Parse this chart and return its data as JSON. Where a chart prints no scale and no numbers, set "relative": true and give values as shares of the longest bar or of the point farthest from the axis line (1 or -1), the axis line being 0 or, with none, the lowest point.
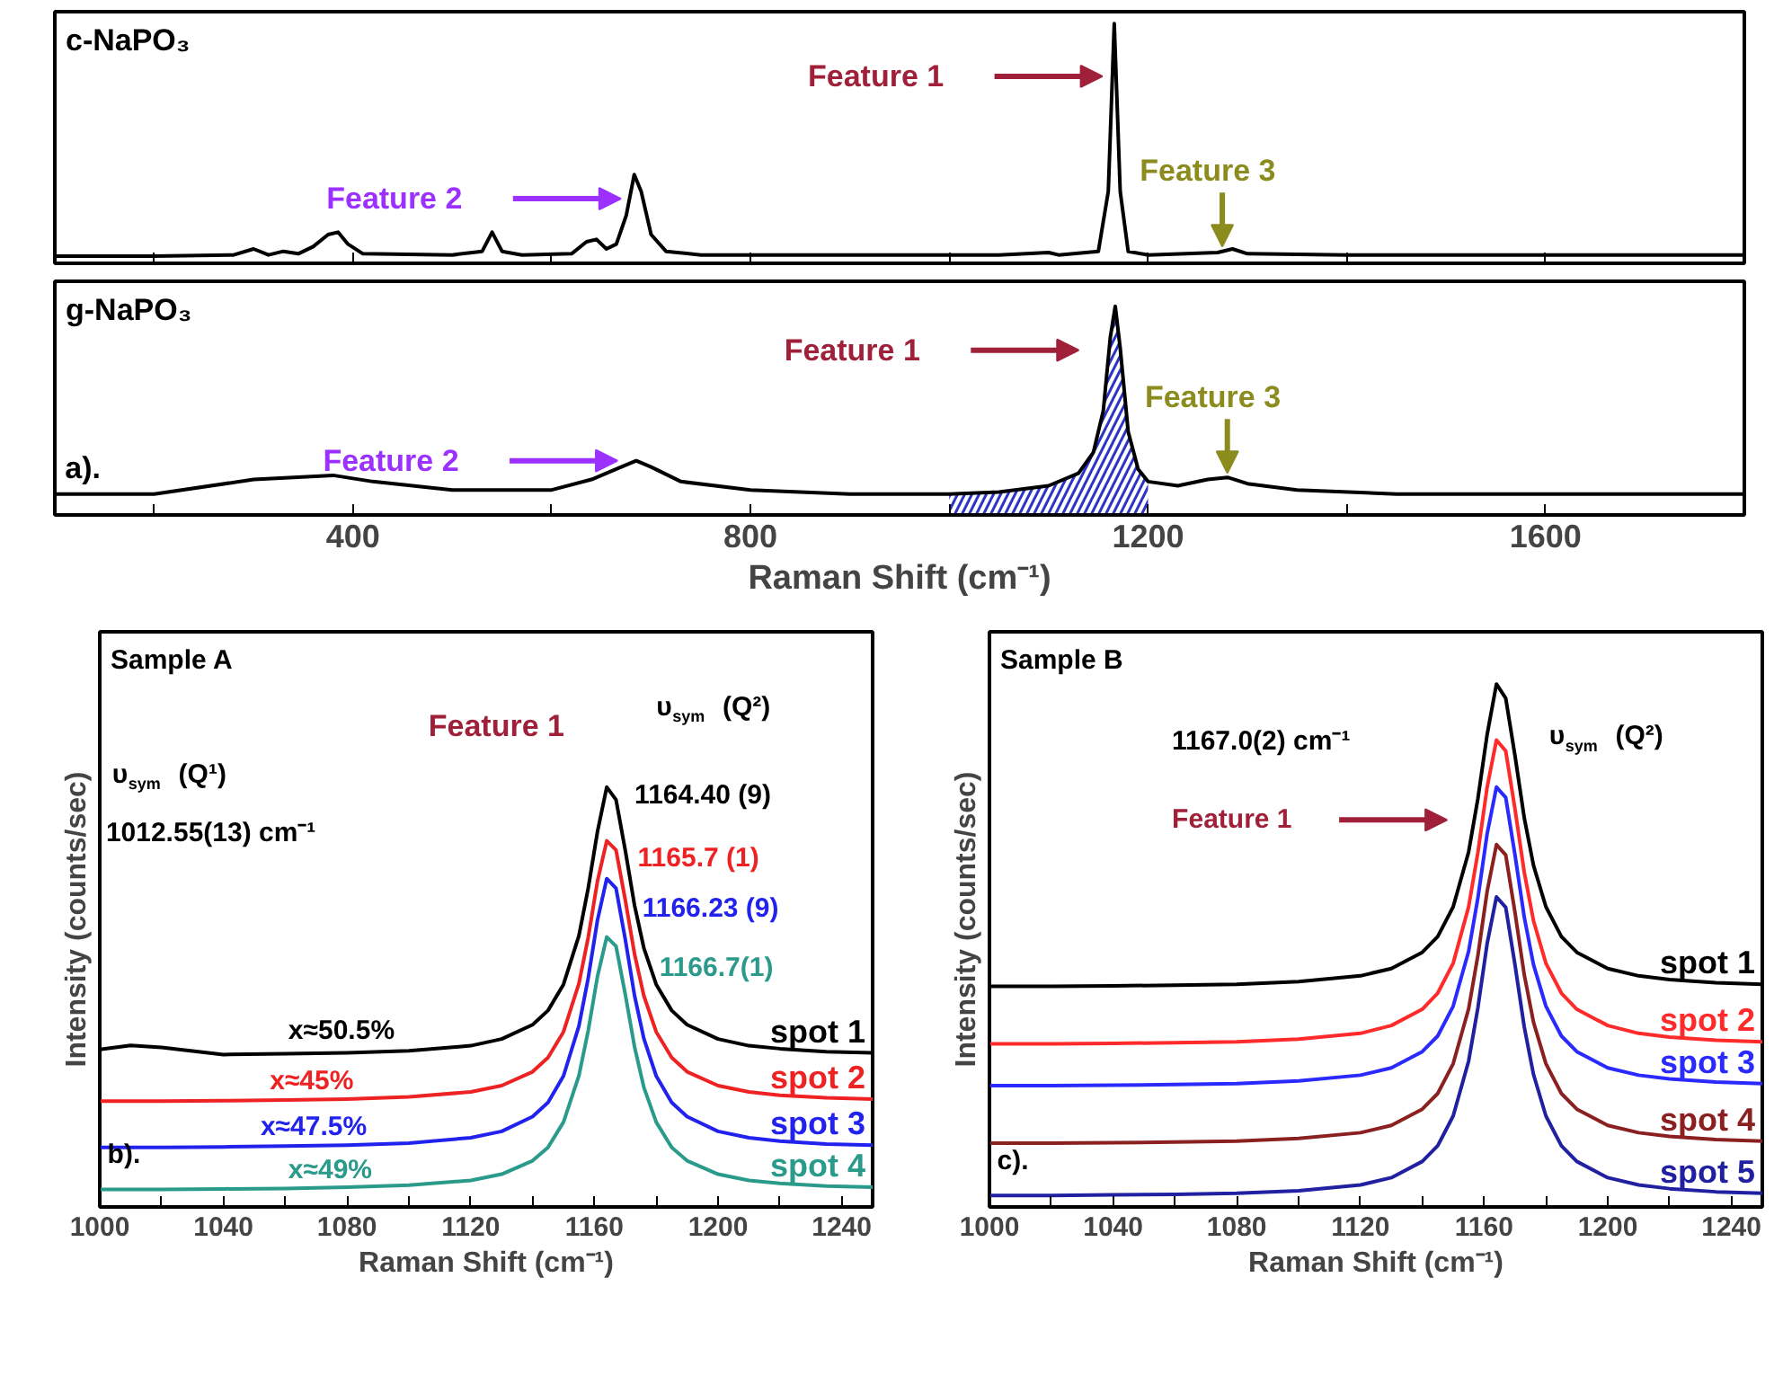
{
  "chart_data": [
    {
      "type": "line",
      "title": "c-NaPO₃",
      "relative": true,
      "tick_labels": false,
      "xlim": [
        100,
        1800
      ],
      "xticks": [
        {
          "value": 200,
          "label": null
        },
        400,
        {
          "value": 600,
          "label": null
        },
        800,
        {
          "value": 1000,
          "label": null
        },
        1200,
        {
          "value": 1400,
          "label": null
        },
        1600,
        {
          "value": 1800,
          "label": null
        }
      ],
      "series": [
        {
          "color": "#000000",
          "x": [
            100,
            200,
            280,
            300,
            315,
            330,
            345,
            360,
            375,
            385,
            395,
            410,
            500,
            530,
            540,
            550,
            570,
            620,
            635,
            645,
            655,
            665,
            675,
            683,
            690,
            700,
            715,
            750,
            900,
            1050,
            1100,
            1110,
            1150,
            1160,
            1166,
            1172,
            1180,
            1200,
            1270,
            1285,
            1300,
            1400,
            1600,
            1800
          ],
          "values": [
            0.03,
            0.03,
            0.035,
            0.06,
            0.035,
            0.05,
            0.04,
            0.07,
            0.12,
            0.13,
            0.08,
            0.04,
            0.035,
            0.05,
            0.13,
            0.05,
            0.035,
            0.04,
            0.09,
            0.1,
            0.06,
            0.08,
            0.2,
            0.37,
            0.3,
            0.12,
            0.05,
            0.035,
            0.035,
            0.035,
            0.045,
            0.035,
            0.05,
            0.3,
            1.0,
            0.3,
            0.05,
            0.035,
            0.045,
            0.06,
            0.04,
            0.035,
            0.035,
            0.035
          ]
        }
      ],
      "annotations": [
        "Feature 1",
        "Feature 2",
        "Feature 3"
      ]
    },
    {
      "type": "line",
      "title": "g-NaPO₃",
      "xlabel": "Raman Shift (cm⁻¹)",
      "relative": true,
      "tick_labels": "x",
      "xlim": [
        100,
        1800
      ],
      "xticks": [
        {
          "value": 200,
          "label": null
        },
        400,
        {
          "value": 600,
          "label": null
        },
        800,
        {
          "value": 1000,
          "label": null
        },
        1200,
        {
          "value": 1400,
          "label": null
        },
        1600,
        {
          "value": 1800,
          "label": null
        }
      ],
      "series": [
        {
          "color": "#000000",
          "x": [
            100,
            200,
            300,
            380,
            420,
            500,
            600,
            640,
            665,
            685,
            700,
            730,
            800,
            900,
            1000,
            1050,
            1100,
            1130,
            1145,
            1155,
            1162,
            1167,
            1172,
            1180,
            1190,
            1200,
            1230,
            1260,
            1280,
            1300,
            1350,
            1450,
            1600,
            1800
          ],
          "values": [
            0.1,
            0.1,
            0.17,
            0.19,
            0.16,
            0.12,
            0.12,
            0.17,
            0.22,
            0.26,
            0.23,
            0.16,
            0.12,
            0.1,
            0.1,
            0.11,
            0.14,
            0.2,
            0.3,
            0.5,
            0.85,
            1.0,
            0.8,
            0.4,
            0.22,
            0.16,
            0.14,
            0.17,
            0.18,
            0.15,
            0.12,
            0.1,
            0.1,
            0.1
          ]
        },
        {
          "type": "area",
          "color": "#2a35c8",
          "x": [
            1000,
            1050,
            1100,
            1130,
            1145,
            1155,
            1162,
            1167,
            1172,
            1180,
            1190,
            1200
          ],
          "values": [
            0.1,
            0.11,
            0.14,
            0.2,
            0.3,
            0.5,
            0.85,
            1.0,
            0.8,
            0.4,
            0.22,
            0.16
          ]
        }
      ],
      "annotations": [
        "Feature 1",
        "Feature 2",
        "Feature 3",
        "a)."
      ]
    },
    {
      "type": "line",
      "title": "Sample A",
      "xlabel": "Raman Shift (cm⁻¹)",
      "ylabel": "Intensity (counts/sec)",
      "relative": true,
      "tick_labels": "x",
      "xlim": [
        1000,
        1250
      ],
      "xticks": [
        1000,
        {
          "value": 1020,
          "label": null
        },
        1040,
        {
          "value": 1060,
          "label": null
        },
        1080,
        {
          "value": 1100,
          "label": null
        },
        1120,
        {
          "value": 1140,
          "label": null
        },
        1160,
        {
          "value": 1180,
          "label": null
        },
        1200,
        {
          "value": 1220,
          "label": null
        },
        1240
      ],
      "x": [
        1000,
        1010,
        1020,
        1040,
        1060,
        1080,
        1100,
        1120,
        1130,
        1140,
        1145,
        1150,
        1155,
        1158,
        1161,
        1164,
        1167,
        1170,
        1173,
        1176,
        1180,
        1185,
        1190,
        1200,
        1210,
        1220,
        1235,
        1250
      ],
      "series": [
        {
          "name": "spot 1",
          "color": "#000000",
          "values": [
            0.375,
            0.385,
            0.38,
            0.363,
            0.365,
            0.367,
            0.372,
            0.384,
            0.4,
            0.434,
            0.468,
            0.53,
            0.646,
            0.759,
            0.894,
            1.0,
            0.97,
            0.849,
            0.718,
            0.617,
            0.53,
            0.468,
            0.434,
            0.4,
            0.384,
            0.377,
            0.37,
            0.367
          ]
        },
        {
          "name": "spot 2",
          "color": "#ee2222",
          "values": [
            0.252,
            0.252,
            0.252,
            0.253,
            0.255,
            0.257,
            0.262,
            0.274,
            0.289,
            0.322,
            0.356,
            0.417,
            0.532,
            0.642,
            0.776,
            0.872,
            0.85,
            0.731,
            0.602,
            0.503,
            0.417,
            0.356,
            0.322,
            0.289,
            0.274,
            0.266,
            0.26,
            0.257
          ]
        },
        {
          "name": "spot 3",
          "color": "#2222ee",
          "values": [
            0.142,
            0.142,
            0.142,
            0.143,
            0.145,
            0.147,
            0.152,
            0.165,
            0.18,
            0.215,
            0.249,
            0.312,
            0.431,
            0.545,
            0.683,
            0.782,
            0.759,
            0.637,
            0.503,
            0.401,
            0.312,
            0.249,
            0.215,
            0.18,
            0.165,
            0.157,
            0.15,
            0.147
          ]
        },
        {
          "name": "spot 4",
          "color": "#2a9a8a",
          "values": [
            0.042,
            0.042,
            0.042,
            0.043,
            0.044,
            0.047,
            0.052,
            0.063,
            0.078,
            0.11,
            0.142,
            0.202,
            0.313,
            0.42,
            0.549,
            0.643,
            0.621,
            0.506,
            0.381,
            0.285,
            0.202,
            0.142,
            0.11,
            0.078,
            0.063,
            0.056,
            0.05,
            0.047
          ]
        }
      ],
      "annotations": [
        "υ$_{sym}$ (Q¹)",
        "1012.55(13) cm⁻¹",
        "Feature 1",
        "υ$_{sym}$ (Q²)",
        "1164.40 (9)",
        "1165.7 (1)",
        "1166.23 (9)",
        "1166.7(1)",
        "x≈50.5%",
        "x≈45%",
        "x≈47.5%",
        "x≈49%",
        "b)."
      ]
    },
    {
      "type": "line",
      "title": "Sample B",
      "xlabel": "Raman Shift (cm⁻¹)",
      "ylabel": "Intensity (counts/sec)",
      "relative": true,
      "tick_labels": "x",
      "xlim": [
        1000,
        1250
      ],
      "xticks": [
        1000,
        {
          "value": 1020,
          "label": null
        },
        1040,
        {
          "value": 1060,
          "label": null
        },
        1080,
        {
          "value": 1100,
          "label": null
        },
        1120,
        {
          "value": 1140,
          "label": null
        },
        1160,
        {
          "value": 1180,
          "label": null
        },
        1200,
        {
          "value": 1220,
          "label": null
        },
        1240
      ],
      "x": [
        1000,
        1010,
        1020,
        1040,
        1060,
        1080,
        1100,
        1120,
        1130,
        1140,
        1145,
        1150,
        1155,
        1158,
        1161,
        1164,
        1167,
        1170,
        1173,
        1176,
        1180,
        1185,
        1190,
        1200,
        1210,
        1220,
        1235,
        1250
      ],
      "series": [
        {
          "name": "spot 1",
          "color": "#000000",
          "values": [
            0.422,
            0.422,
            0.422,
            0.423,
            0.424,
            0.426,
            0.431,
            0.442,
            0.456,
            0.487,
            0.517,
            0.574,
            0.679,
            0.781,
            0.904,
            1.0,
            0.973,
            0.863,
            0.744,
            0.653,
            0.574,
            0.517,
            0.487,
            0.456,
            0.442,
            0.435,
            0.429,
            0.426
          ]
        },
        {
          "name": "spot 2",
          "color": "#ff2a2a",
          "values": [
            0.312,
            0.312,
            0.312,
            0.313,
            0.314,
            0.316,
            0.321,
            0.332,
            0.347,
            0.378,
            0.409,
            0.466,
            0.574,
            0.678,
            0.803,
            0.893,
            0.872,
            0.761,
            0.64,
            0.547,
            0.466,
            0.409,
            0.378,
            0.347,
            0.332,
            0.325,
            0.319,
            0.316
          ]
        },
        {
          "name": "spot 3",
          "color": "#2a2aff",
          "values": [
            0.232,
            0.232,
            0.232,
            0.233,
            0.234,
            0.236,
            0.241,
            0.252,
            0.266,
            0.297,
            0.327,
            0.384,
            0.489,
            0.591,
            0.714,
            0.803,
            0.783,
            0.673,
            0.554,
            0.463,
            0.384,
            0.327,
            0.297,
            0.266,
            0.252,
            0.245,
            0.239,
            0.236
          ]
        },
        {
          "name": "spot 4",
          "color": "#8b2020",
          "values": [
            0.122,
            0.122,
            0.122,
            0.123,
            0.124,
            0.126,
            0.131,
            0.142,
            0.156,
            0.187,
            0.217,
            0.274,
            0.379,
            0.481,
            0.604,
            0.693,
            0.673,
            0.563,
            0.444,
            0.353,
            0.274,
            0.217,
            0.187,
            0.156,
            0.142,
            0.135,
            0.129,
            0.126
          ]
        },
        {
          "name": "spot 5",
          "color": "#2020a0",
          "values": [
            0.022,
            0.022,
            0.022,
            0.023,
            0.024,
            0.026,
            0.031,
            0.042,
            0.056,
            0.087,
            0.117,
            0.174,
            0.279,
            0.381,
            0.504,
            0.593,
            0.573,
            0.463,
            0.344,
            0.253,
            0.174,
            0.117,
            0.087,
            0.056,
            0.042,
            0.035,
            0.029,
            0.026
          ]
        }
      ],
      "annotations": [
        "1167.0(2) cm⁻¹",
        "υ$_{sym}$ (Q²)",
        "Feature 1",
        "c)."
      ]
    }
  ]
}
